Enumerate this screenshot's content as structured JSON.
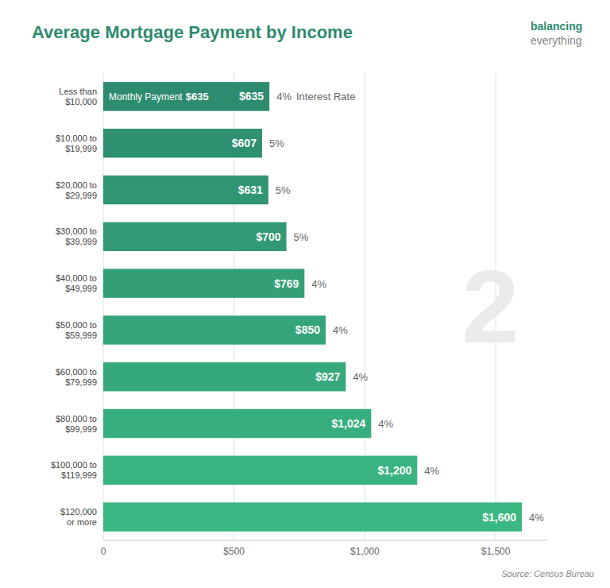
{
  "chart_data": {
    "type": "bar",
    "orientation": "horizontal",
    "title": "Average Mortgage Payment by Income",
    "categories": [
      "Less than\n$10,000",
      "$10,000 to\n$19,999",
      "$20,000 to\n$29,999",
      "$30,000 to\n$39,999",
      "$40,000 to\n$49,999",
      "$50,000 to\n$59,999",
      "$60,000 to\n$79,999",
      "$80,000 to\n$99,999",
      "$100,000 to\n$119,999",
      "$120,000\nor more"
    ],
    "values": [
      635,
      607,
      631,
      700,
      769,
      850,
      927,
      1024,
      1200,
      1600
    ],
    "value_labels": [
      "$635",
      "$607",
      "$631",
      "$700",
      "$769",
      "$850",
      "$927",
      "$1,024",
      "$1,200",
      "$1,600"
    ],
    "data_labels": true,
    "colors": [
      "#2d8b6f",
      "#2e9071",
      "#309573",
      "#319a75",
      "#339f77",
      "#34a47a",
      "#36a97c",
      "#37ae7e",
      "#39b380",
      "#3ab882"
    ],
    "xlim": [
      0,
      1700
    ],
    "xticks": [
      0,
      {
        "value": 500,
        "label": "$500"
      },
      {
        "value": 1000,
        "label": "$1,000"
      },
      {
        "value": 1500,
        "label": "$1,500"
      }
    ],
    "grid": true,
    "annotations": {
      "interest_rates": [
        "4%",
        "5%",
        "5%",
        "5%",
        "4%",
        "4%",
        "4%",
        "4%",
        "4%",
        "4%"
      ],
      "bar_text": "Monthly Payment",
      "rate_text": "Interest Rate",
      "watermark": "2",
      "brand": [
        "balancing",
        "everything"
      ],
      "source": "Source: Census Bureau"
    }
  }
}
